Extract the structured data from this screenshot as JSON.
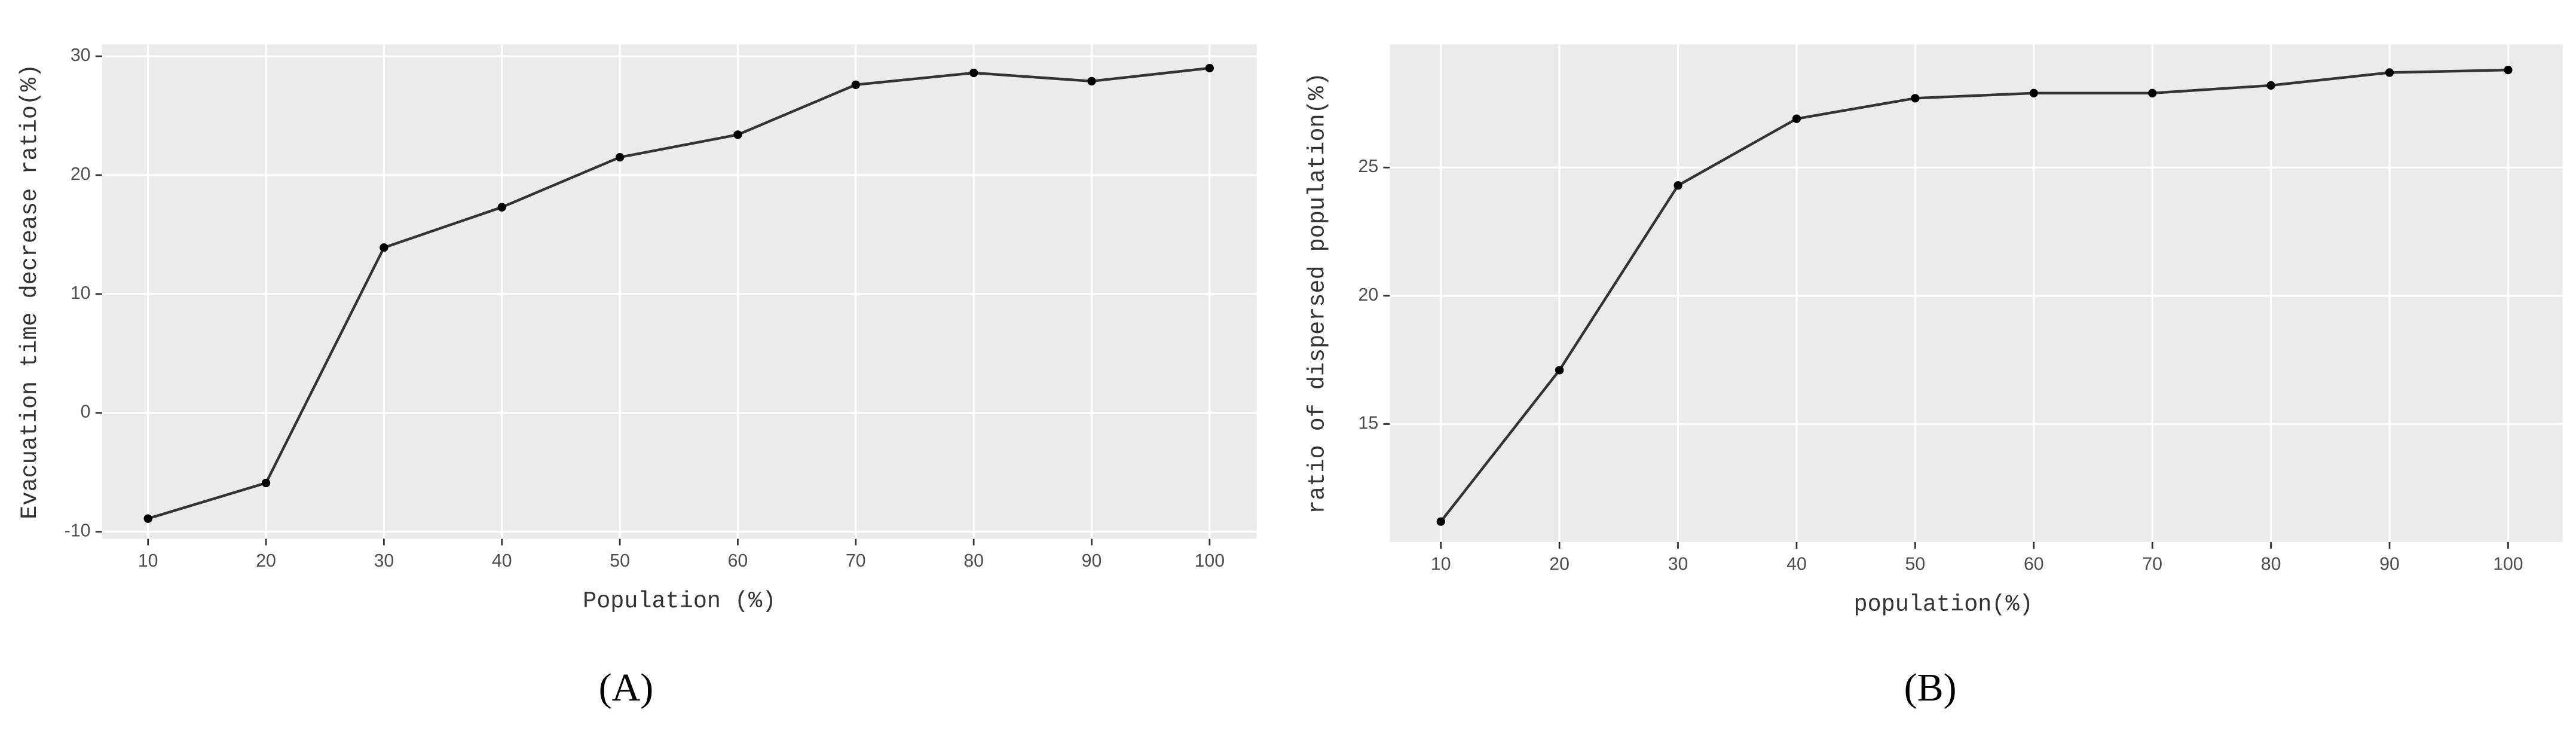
{
  "chart_data": [
    {
      "type": "line",
      "caption": "(A)",
      "x_label": "Population (%)",
      "y_label": "Evacuation time decrease ratio(%)",
      "x": [
        10,
        20,
        30,
        40,
        50,
        60,
        70,
        80,
        90,
        100
      ],
      "series": [
        {
          "name": "A",
          "color": "#333333",
          "values": [
            -8.9,
            -5.9,
            13.9,
            17.3,
            21.5,
            23.4,
            27.6,
            28.6,
            27.9,
            29.0
          ]
        }
      ],
      "xlim": [
        6.1,
        104
      ],
      "xticks": [
        10,
        20,
        30,
        40,
        50,
        60,
        70,
        80,
        90,
        100
      ],
      "ylim": [
        -10.6,
        31
      ],
      "yticks": [
        -10,
        0,
        10,
        20,
        30
      ],
      "grid": true
    },
    {
      "type": "line",
      "caption": "(B)",
      "x_label": "population(%)",
      "y_label": "ratio of dispersed population(%)",
      "x": [
        10,
        20,
        30,
        40,
        50,
        60,
        70,
        80,
        90,
        100
      ],
      "series": [
        {
          "name": "B",
          "color": "#333333",
          "values": [
            11.2,
            17.1,
            24.3,
            26.9,
            27.7,
            27.9,
            27.9,
            28.2,
            28.7,
            28.8
          ]
        }
      ],
      "xlim": [
        5.7,
        104.6
      ],
      "xticks": [
        10,
        20,
        30,
        40,
        50,
        60,
        70,
        80,
        90,
        100
      ],
      "ylim": [
        10.4,
        29.8
      ],
      "yticks": [
        15,
        20,
        25
      ],
      "grid": true
    }
  ]
}
